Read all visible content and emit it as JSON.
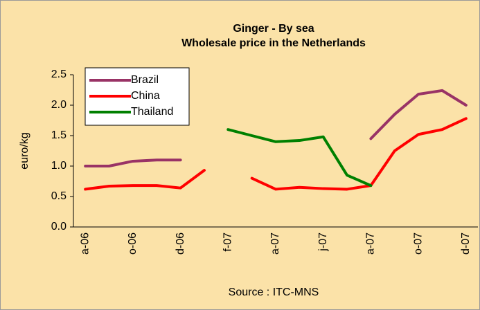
{
  "chart_data": {
    "type": "line",
    "title": "Ginger - By sea",
    "subtitle": "Wholesale price in the Netherlands",
    "y_label": "euro/kg",
    "x_label": "Source : ITC-MNS",
    "categories": [
      "a-06",
      null,
      "o-06",
      null,
      "d-06",
      null,
      "f-07",
      null,
      "a-07",
      null,
      "j-07",
      null,
      "a-07",
      null,
      "o-07",
      null,
      "d-07"
    ],
    "series": [
      {
        "name": "Brazil",
        "color": "#993366",
        "values": [
          1.0,
          1.0,
          1.08,
          1.1,
          1.1,
          null,
          null,
          null,
          null,
          null,
          null,
          null,
          1.45,
          1.85,
          2.18,
          2.24,
          2.0
        ]
      },
      {
        "name": "China",
        "color": "#ff0000",
        "values": [
          0.62,
          0.67,
          0.68,
          0.68,
          0.64,
          0.93,
          null,
          0.8,
          0.62,
          0.65,
          0.63,
          0.62,
          0.68,
          1.25,
          1.52,
          1.6,
          1.78
        ]
      },
      {
        "name": "Thailand",
        "color": "#008000",
        "values": [
          null,
          null,
          null,
          null,
          null,
          null,
          1.6,
          1.5,
          1.4,
          1.42,
          1.48,
          0.85,
          0.68,
          null,
          null,
          null,
          null
        ]
      }
    ],
    "ylim": [
      0,
      2.5
    ],
    "yticks": [
      {
        "value": 0,
        "label": "0.0"
      },
      {
        "value": 0.5,
        "label": "0.5"
      },
      {
        "value": 1,
        "label": "1.0"
      },
      {
        "value": 1.5,
        "label": "1.5"
      },
      {
        "value": 2,
        "label": "2.0"
      },
      {
        "value": 2.5,
        "label": "2.5"
      }
    ],
    "legend": "top-left"
  }
}
